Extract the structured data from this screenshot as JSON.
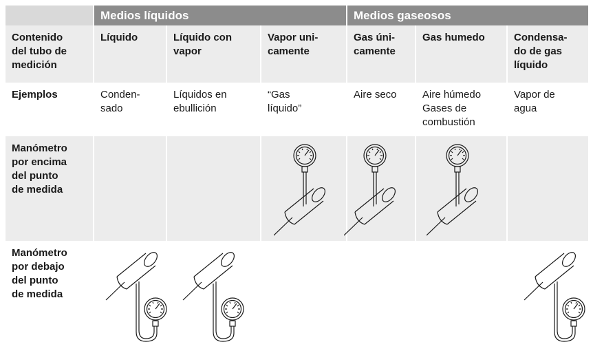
{
  "header": {
    "groups": [
      {
        "title": "Medios líquidos"
      },
      {
        "title": "Medios gaseosos"
      }
    ]
  },
  "table": {
    "rows": [
      {
        "cells": [
          [
            "Contenido",
            "del tubo de",
            "medición"
          ],
          [
            "Líquido"
          ],
          [
            "Líquido con",
            "vapor"
          ],
          [
            "Vapor uni-",
            "camente"
          ],
          [
            "Gas úni-",
            "camente"
          ],
          [
            "Gas humedo"
          ],
          [
            "Condensa-",
            "do de gas",
            "líquido"
          ]
        ]
      },
      {
        "cells": [
          [
            "Ejemplos"
          ],
          [
            "Conden-",
            "sado"
          ],
          [
            "Líquidos en",
            "ebullición"
          ],
          [
            "“Gas",
            "líquido”"
          ],
          [
            "Aire seco"
          ],
          [
            "Aire húmedo",
            "Gases de",
            "combustión"
          ],
          [
            "Vapor de",
            "agua"
          ]
        ]
      },
      {
        "cells": [
          [
            "Manómetro",
            "por encima",
            "del punto",
            "de medida"
          ]
        ]
      },
      {
        "cells": [
          [
            "Manómetro",
            "por debajo",
            "del punto",
            "de medida"
          ]
        ]
      }
    ]
  }
}
